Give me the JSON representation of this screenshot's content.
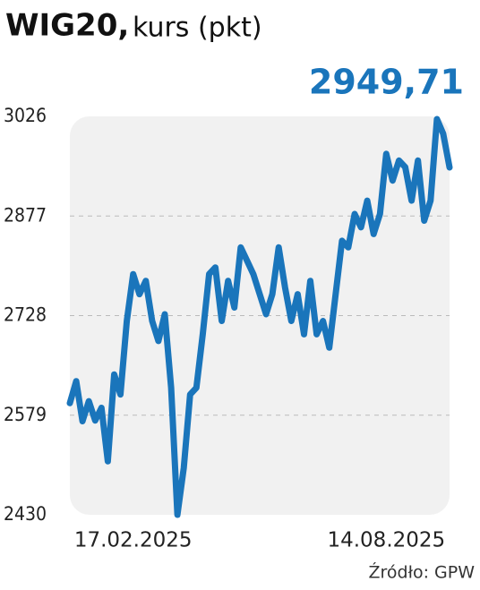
{
  "chart_data": {
    "type": "line",
    "title": "WIG20,",
    "subtitle": "kurs (pkt)",
    "annotation": "2949,71",
    "source": "Źródło: GPW",
    "categories": [
      null,
      null,
      null,
      null,
      null,
      null,
      null,
      null,
      null,
      null,
      "17.02.2025",
      null,
      null,
      null,
      null,
      null,
      null,
      null,
      null,
      null,
      null,
      null,
      null,
      null,
      null,
      null,
      null,
      null,
      null,
      null,
      null,
      null,
      null,
      null,
      null,
      null,
      null,
      null,
      null,
      null,
      null,
      null,
      null,
      null,
      null,
      null,
      null,
      null,
      null,
      null,
      "14.08.2025",
      null,
      null,
      null,
      null,
      null,
      null,
      null,
      null,
      null,
      null
    ],
    "series": [
      {
        "name": "WIG20",
        "color": "#1a75bb",
        "values": [
          2597,
          2630,
          2570,
          2600,
          2571,
          2590,
          2510,
          2640,
          2610,
          2720,
          2790,
          2760,
          2780,
          2720,
          2690,
          2730,
          2620,
          2430,
          2500,
          2610,
          2620,
          2700,
          2790,
          2800,
          2720,
          2780,
          2740,
          2830,
          2810,
          2790,
          2760,
          2730,
          2760,
          2830,
          2770,
          2720,
          2760,
          2700,
          2780,
          2700,
          2720,
          2680,
          2760,
          2840,
          2830,
          2880,
          2860,
          2900,
          2850,
          2880,
          2970,
          2930,
          2960,
          2950,
          2900,
          2960,
          2870,
          2900,
          3022,
          3000,
          2949.71
        ]
      }
    ],
    "ylim": [
      2430,
      3026
    ],
    "yticks": [
      2430,
      2579,
      2728,
      2877,
      3026
    ],
    "grid": true
  }
}
